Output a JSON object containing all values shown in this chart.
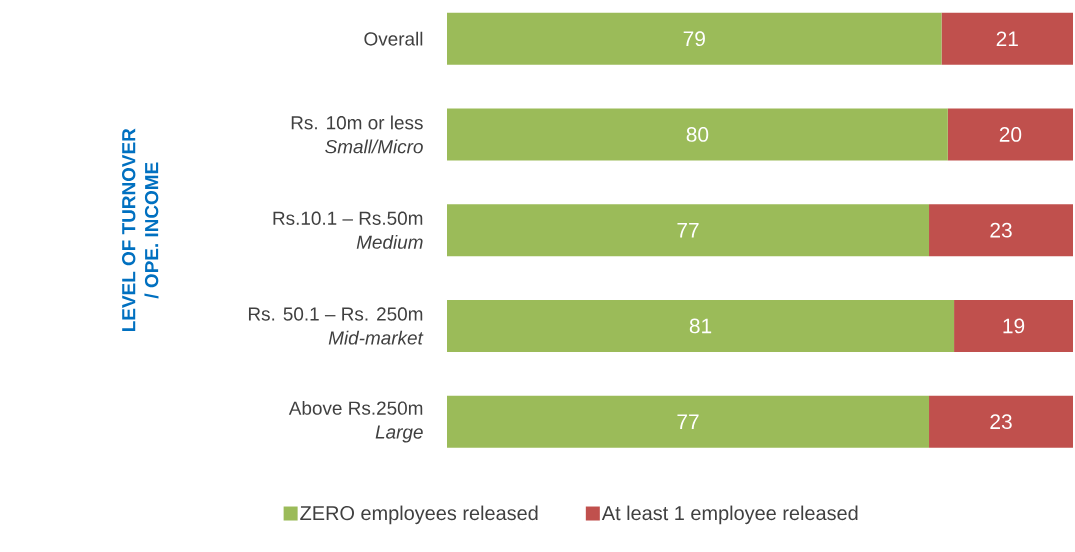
{
  "chart_data": {
    "type": "bar",
    "orientation": "horizontal",
    "stacked": true,
    "ylabel": "LEVEL OF TURNOVER\n/ OPE. INCOME",
    "categories": [
      "Overall",
      "Rs. 10m or less\n*Small/Micro*",
      "Rs.10.1 – Rs.50m\n*Medium*",
      "Rs. 50.1 – Rs. 250m\n*Mid-market*",
      "Above Rs.250m\n*Large*"
    ],
    "series": [
      {
        "name": "ZERO employees released",
        "color": "#9bbb59",
        "values": [
          79,
          80,
          77,
          81,
          77
        ]
      },
      {
        "name": "At least 1 employee released",
        "color": "#c0504d",
        "values": [
          21,
          20,
          23,
          19,
          23
        ]
      }
    ],
    "tick_labels": "y",
    "data_labels": true,
    "legend": "bottom"
  }
}
